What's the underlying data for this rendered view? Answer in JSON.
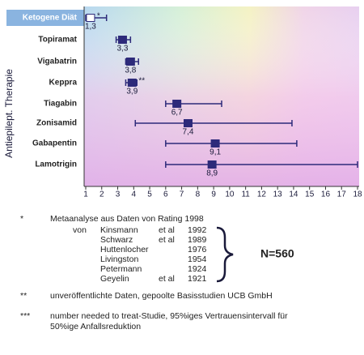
{
  "chart_data": {
    "type": "forest",
    "ylabel": "Antiepilept. Therapie",
    "categories": [
      "Ketogene Diät",
      "Topiramat",
      "Vigabatrin",
      "Keppra",
      "Tiagabin",
      "Zonisamid",
      "Gabapentin",
      "Lamotrigin"
    ],
    "markers": [
      "*",
      null,
      null,
      "**",
      null,
      null,
      null,
      null
    ],
    "values": [
      1.3,
      3.3,
      3.8,
      3.9,
      6.7,
      7.4,
      9.1,
      8.9
    ],
    "value_labels": [
      "1,3",
      "3,3",
      "3,8",
      "3,9",
      "6,7",
      "7,4",
      "9,1",
      "8,9"
    ],
    "lower": [
      1.0,
      2.9,
      3.5,
      3.5,
      6.0,
      4.1,
      6.0,
      6.0
    ],
    "upper": [
      2.3,
      3.8,
      4.3,
      4.2,
      9.5,
      13.9,
      14.2,
      18
    ],
    "xlim": [
      1,
      18
    ],
    "xticks": [
      1,
      2,
      3,
      4,
      5,
      6,
      7,
      8,
      9,
      10,
      11,
      12,
      13,
      14,
      15,
      16,
      17,
      18
    ],
    "color": "#2d2a7a"
  },
  "notes": {
    "star1": {
      "marker": "*",
      "text": "Metaanalyse aus Daten von Rating 1998",
      "von": "von",
      "rows": [
        {
          "name": "Kinsmann",
          "etal": "et al",
          "year": "1992"
        },
        {
          "name": "Schwarz",
          "etal": "et al",
          "year": "1989"
        },
        {
          "name": "Huttenlocher",
          "year": "1976"
        },
        {
          "name": "Livingston",
          "year": "1954"
        },
        {
          "name": "Petermann",
          "year": "1924"
        },
        {
          "name": "Geyelin",
          "etal": "et al",
          "year": "1921"
        }
      ],
      "total": "N=560"
    },
    "star2": {
      "marker": "**",
      "text": "unveröffentlichte Daten, gepoolte Basisstudien UCB GmbH"
    },
    "star3": {
      "marker": "***",
      "lines": [
        "number needed to treat-Studie, 95%iges Vertrauensintervall für",
        "50%ige Anfallsreduktion"
      ]
    }
  }
}
